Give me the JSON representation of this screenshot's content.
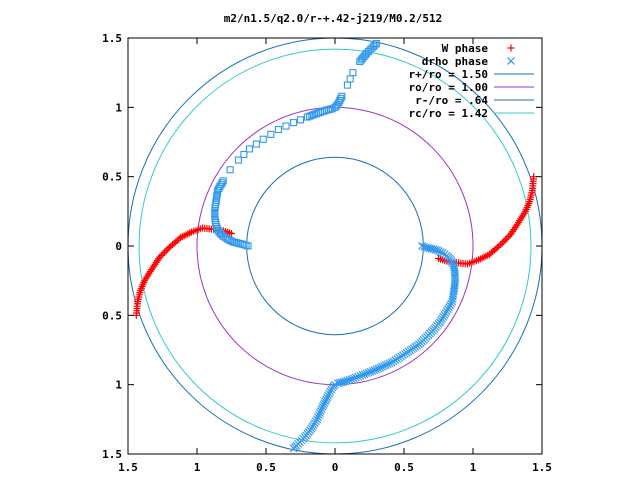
{
  "chart_data": {
    "type": "scatter",
    "title": "m2/n1.5/q2.0/r-+.42-j219/M0.2/512",
    "xlabel": "",
    "ylabel": "",
    "xlim": [
      -1.5,
      1.5
    ],
    "ylim": [
      -1.5,
      1.5
    ],
    "xticks": [
      -1.5,
      -1,
      -0.5,
      0,
      0.5,
      1,
      1.5
    ],
    "yticks": [
      1.5,
      1,
      0.5,
      0,
      -0.5,
      -1,
      -1.5
    ],
    "xtick_labels": [
      "1.5",
      "1",
      "0.5",
      "0",
      "0.5",
      "1",
      "1.5"
    ],
    "ytick_labels": [
      "1.5",
      "1",
      "0.5",
      "0",
      "0.5",
      "1",
      "1.5"
    ],
    "grid": false,
    "legend_position": "top-right",
    "series": [
      {
        "name": "W phase",
        "marker": "plus",
        "color": "#ff0000",
        "segments": [
          [
            [
              -1.44,
              -0.5
            ],
            [
              -1.43,
              -0.4
            ],
            [
              -1.41,
              -0.32
            ],
            [
              -1.38,
              -0.25
            ],
            [
              -1.33,
              -0.17
            ],
            [
              -1.27,
              -0.08
            ],
            [
              -1.2,
              -0.01
            ],
            [
              -1.12,
              0.06
            ],
            [
              -1.04,
              0.1
            ],
            [
              -0.96,
              0.13
            ],
            [
              -0.88,
              0.12
            ],
            [
              -0.81,
              0.11
            ],
            [
              -0.75,
              0.09
            ]
          ],
          [
            [
              1.44,
              0.5
            ],
            [
              1.43,
              0.4
            ],
            [
              1.41,
              0.32
            ],
            [
              1.38,
              0.25
            ],
            [
              1.33,
              0.17
            ],
            [
              1.27,
              0.08
            ],
            [
              1.2,
              0.01
            ],
            [
              1.12,
              -0.06
            ],
            [
              1.04,
              -0.1
            ],
            [
              0.96,
              -0.13
            ],
            [
              0.88,
              -0.12
            ],
            [
              0.81,
              -0.11
            ],
            [
              0.75,
              -0.09
            ]
          ]
        ]
      },
      {
        "name": "drho phase",
        "marker": "cross",
        "color": "#3399ee",
        "segments": [
          [
            [
              0.63,
              0.0
            ],
            [
              0.66,
              -0.01
            ],
            [
              0.7,
              -0.02
            ],
            [
              0.74,
              -0.03
            ],
            [
              0.78,
              -0.05
            ],
            [
              0.81,
              -0.07
            ],
            [
              0.84,
              -0.1
            ],
            [
              0.86,
              -0.14
            ],
            [
              0.87,
              -0.2
            ],
            [
              0.87,
              -0.27
            ],
            [
              0.86,
              -0.33
            ],
            [
              0.85,
              -0.4
            ],
            [
              0.81,
              -0.47
            ],
            [
              0.76,
              -0.55
            ],
            [
              0.7,
              -0.62
            ],
            [
              0.62,
              -0.7
            ],
            [
              0.52,
              -0.77
            ],
            [
              0.41,
              -0.84
            ],
            [
              0.3,
              -0.89
            ],
            [
              0.2,
              -0.93
            ],
            [
              0.12,
              -0.96
            ],
            [
              0.06,
              -0.98
            ],
            [
              0.02,
              -0.99
            ],
            [
              0.0,
              -1.0
            ],
            [
              -0.02,
              -1.02
            ],
            [
              -0.05,
              -1.08
            ],
            [
              -0.09,
              -1.16
            ],
            [
              -0.13,
              -1.25
            ],
            [
              -0.18,
              -1.33
            ],
            [
              -0.23,
              -1.39
            ],
            [
              -0.28,
              -1.44
            ],
            [
              -0.3,
              -1.46
            ]
          ]
        ]
      },
      {
        "name": "drho phase (mirror)",
        "marker": "square",
        "color": "#3399ee",
        "segments": [
          [
            [
              -0.63,
              0.0
            ],
            [
              -0.66,
              0.01
            ],
            [
              -0.7,
              0.02
            ],
            [
              -0.74,
              0.03
            ],
            [
              -0.78,
              0.05
            ],
            [
              -0.81,
              0.07
            ],
            [
              -0.84,
              0.1
            ],
            [
              -0.86,
              0.14
            ],
            [
              -0.87,
              0.2
            ],
            [
              -0.87,
              0.27
            ],
            [
              -0.86,
              0.33
            ],
            [
              -0.85,
              0.4
            ],
            [
              -0.81,
              0.47
            ],
            [
              -0.76,
              0.55
            ],
            [
              -0.7,
              0.62
            ],
            [
              -0.62,
              0.7
            ],
            [
              -0.52,
              0.77
            ],
            [
              -0.41,
              0.84
            ],
            [
              -0.3,
              0.89
            ],
            [
              -0.2,
              0.93
            ],
            [
              -0.12,
              0.96
            ],
            [
              -0.06,
              0.98
            ],
            [
              -0.02,
              0.99
            ],
            [
              0.0,
              1.0
            ],
            [
              0.02,
              1.02
            ],
            [
              0.05,
              1.08
            ],
            [
              0.09,
              1.16
            ],
            [
              0.13,
              1.25
            ],
            [
              0.18,
              1.33
            ],
            [
              0.23,
              1.39
            ],
            [
              0.28,
              1.44
            ],
            [
              0.3,
              1.46
            ]
          ]
        ]
      }
    ],
    "circles": [
      {
        "name": "r+/ro = 1.50",
        "radius": 1.5,
        "color": "#1a6fbf"
      },
      {
        "name": "ro/ro = 1.00",
        "radius": 1.0,
        "color": "#9933cc"
      },
      {
        "name": "r-/ro = .64",
        "radius": 0.64,
        "color": "#1a6fbf"
      },
      {
        "name": "rc/ro = 1.42",
        "radius": 1.42,
        "color": "#33cccc"
      }
    ],
    "legend": [
      {
        "label": "W phase",
        "marker": "plus",
        "color": "#ff0000"
      },
      {
        "label": "drho phase",
        "marker": "cross",
        "color": "#3399ee"
      },
      {
        "label": "r+/ro = 1.50",
        "marker": "line",
        "color": "#1a6fbf"
      },
      {
        "label": "ro/ro = 1.00",
        "marker": "line",
        "color": "#9933cc"
      },
      {
        "label": "r-/ro = .64",
        "marker": "line",
        "color": "#1a6fbf"
      },
      {
        "label": "rc/ro = 1.42",
        "marker": "line",
        "color": "#33cccc"
      }
    ]
  }
}
